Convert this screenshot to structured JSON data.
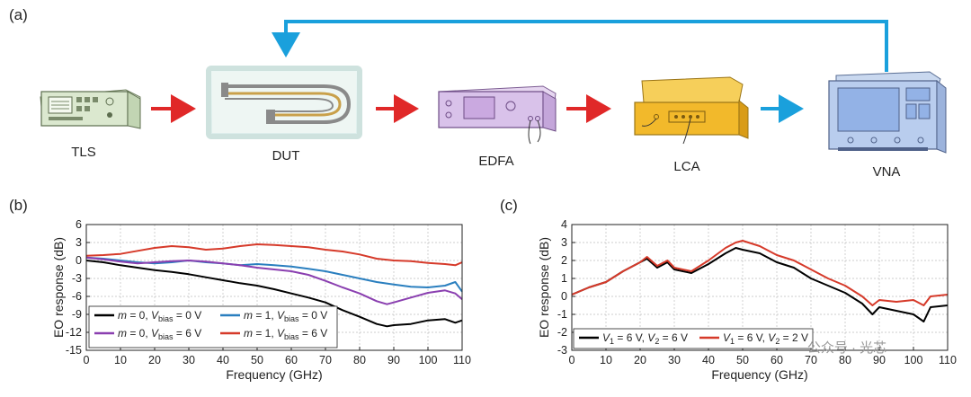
{
  "panels": {
    "a": "(a)",
    "b": "(b)",
    "c": "(c)"
  },
  "setup": {
    "devices": [
      {
        "id": "tls",
        "label": "TLS",
        "icon": "laser-source-icon"
      },
      {
        "id": "dut",
        "label": "DUT",
        "icon": "modulator-chip-icon"
      },
      {
        "id": "edfa",
        "label": "EDFA",
        "icon": "amplifier-icon"
      },
      {
        "id": "lca",
        "label": "LCA",
        "icon": "component-analyzer-icon"
      },
      {
        "id": "vna",
        "label": "VNA",
        "icon": "network-analyzer-icon"
      }
    ],
    "colors": {
      "optical_arrow": "#e02828",
      "electrical_arrow": "#1aa0dc"
    }
  },
  "watermark": "公众号 · 光芯",
  "chart_data": [
    {
      "type": "line",
      "panel": "(b)",
      "xlabel": "Frequency (GHz)",
      "ylabel": "EO response (dB)",
      "xlim": [
        0,
        110
      ],
      "ylim": [
        -15,
        6
      ],
      "xticks": [
        0,
        10,
        20,
        30,
        40,
        50,
        60,
        70,
        80,
        90,
        100,
        110
      ],
      "yticks": [
        6,
        3,
        0,
        -3,
        -6,
        -9,
        -12,
        -15
      ],
      "grid": true,
      "legend_position": "bottom-left",
      "series": [
        {
          "name": "m = 0, V_bias = 0 V",
          "legend_parts": [
            "m",
            " = 0, ",
            "V",
            "bias",
            " = 0 V"
          ],
          "color": "#000000",
          "x": [
            0,
            5,
            10,
            15,
            20,
            25,
            30,
            35,
            40,
            45,
            50,
            55,
            60,
            65,
            70,
            75,
            80,
            85,
            88,
            90,
            95,
            100,
            105,
            108,
            110
          ],
          "y": [
            0,
            -0.3,
            -0.8,
            -1.2,
            -1.6,
            -1.9,
            -2.3,
            -2.8,
            -3.3,
            -3.8,
            -4.2,
            -4.8,
            -5.5,
            -6.2,
            -7.0,
            -8.3,
            -9.4,
            -10.6,
            -11.0,
            -10.8,
            -10.6,
            -10.0,
            -9.8,
            -10.4,
            -10.0
          ]
        },
        {
          "name": "m = 1, V_bias = 0 V",
          "legend_parts": [
            "m",
            " = 1, ",
            "V",
            "bias",
            " = 0 V"
          ],
          "color": "#2a7fbf",
          "x": [
            0,
            5,
            10,
            15,
            20,
            25,
            30,
            35,
            40,
            45,
            50,
            55,
            60,
            65,
            70,
            75,
            80,
            85,
            90,
            95,
            100,
            105,
            108,
            110
          ],
          "y": [
            0.5,
            0.3,
            0,
            -0.3,
            -0.5,
            -0.3,
            0,
            -0.3,
            -0.5,
            -0.8,
            -0.6,
            -0.8,
            -1.0,
            -1.4,
            -1.8,
            -2.4,
            -3.0,
            -3.6,
            -4.0,
            -4.4,
            -4.5,
            -4.2,
            -3.6,
            -5.2
          ]
        },
        {
          "name": "m = 0, V_bias = 6 V",
          "legend_parts": [
            "m",
            " = 0, ",
            "V",
            "bias",
            " = 6 V"
          ],
          "color": "#8a3fb0",
          "x": [
            0,
            5,
            10,
            15,
            20,
            25,
            30,
            35,
            40,
            45,
            50,
            55,
            60,
            65,
            70,
            75,
            80,
            85,
            88,
            90,
            95,
            100,
            105,
            108,
            110
          ],
          "y": [
            0.5,
            0.2,
            -0.2,
            -0.5,
            -0.3,
            -0.1,
            0,
            -0.2,
            -0.5,
            -0.8,
            -1.2,
            -1.5,
            -1.8,
            -2.4,
            -3.4,
            -4.5,
            -5.5,
            -6.8,
            -7.3,
            -7.0,
            -6.2,
            -5.4,
            -5.0,
            -5.5,
            -6.5
          ]
        },
        {
          "name": "m = 1, V_bias = 6 V",
          "legend_parts": [
            "m",
            " = 1, ",
            "V",
            "bias",
            " = 6 V"
          ],
          "color": "#d63a2a",
          "x": [
            0,
            5,
            10,
            15,
            20,
            25,
            30,
            35,
            40,
            45,
            50,
            55,
            60,
            65,
            70,
            75,
            80,
            85,
            90,
            95,
            100,
            105,
            108,
            110
          ],
          "y": [
            0.8,
            0.9,
            1.1,
            1.6,
            2.1,
            2.4,
            2.2,
            1.8,
            2.0,
            2.4,
            2.7,
            2.6,
            2.4,
            2.2,
            1.8,
            1.5,
            1.0,
            0.3,
            0.0,
            -0.1,
            -0.4,
            -0.6,
            -0.8,
            -0.3
          ]
        }
      ]
    },
    {
      "type": "line",
      "panel": "(c)",
      "xlabel": "Frequency (GHz)",
      "ylabel": "EO response (dB)",
      "xlim": [
        0,
        110
      ],
      "ylim": [
        -3,
        4
      ],
      "xticks": [
        0,
        10,
        20,
        30,
        40,
        50,
        60,
        70,
        80,
        90,
        100,
        110
      ],
      "yticks": [
        4,
        3,
        2,
        1,
        0,
        -1,
        -2,
        -3
      ],
      "grid": true,
      "legend_position": "bottom-left",
      "series": [
        {
          "name": "V1 = 6 V, V2 = 6 V",
          "legend_parts": [
            "V",
            "1",
            " = 6 V, ",
            "V",
            "2",
            " = 6 V"
          ],
          "color": "#000000",
          "x": [
            0,
            5,
            10,
            15,
            20,
            22,
            25,
            28,
            30,
            35,
            40,
            45,
            48,
            50,
            55,
            60,
            65,
            70,
            75,
            80,
            85,
            88,
            90,
            95,
            100,
            103,
            105,
            110
          ],
          "y": [
            0.1,
            0.5,
            0.8,
            1.4,
            1.9,
            2.1,
            1.6,
            1.9,
            1.5,
            1.3,
            1.8,
            2.4,
            2.7,
            2.6,
            2.4,
            1.9,
            1.6,
            1.0,
            0.6,
            0.2,
            -0.4,
            -1.0,
            -0.6,
            -0.8,
            -1.0,
            -1.4,
            -0.6,
            -0.5
          ]
        },
        {
          "name": "V1 = 6 V, V2 = 2 V",
          "legend_parts": [
            "V",
            "1",
            " = 6 V, ",
            "V",
            "2",
            " = 2 V"
          ],
          "color": "#d63a2a",
          "x": [
            0,
            5,
            10,
            15,
            20,
            22,
            25,
            28,
            30,
            35,
            40,
            45,
            48,
            50,
            55,
            60,
            65,
            70,
            75,
            80,
            85,
            88,
            90,
            95,
            100,
            103,
            105,
            110
          ],
          "y": [
            0.1,
            0.5,
            0.8,
            1.4,
            1.9,
            2.2,
            1.7,
            2.0,
            1.6,
            1.4,
            2.0,
            2.7,
            3.0,
            3.1,
            2.8,
            2.3,
            2.0,
            1.5,
            1.0,
            0.6,
            0.0,
            -0.5,
            -0.2,
            -0.3,
            -0.2,
            -0.5,
            0.0,
            0.1
          ]
        }
      ]
    }
  ]
}
